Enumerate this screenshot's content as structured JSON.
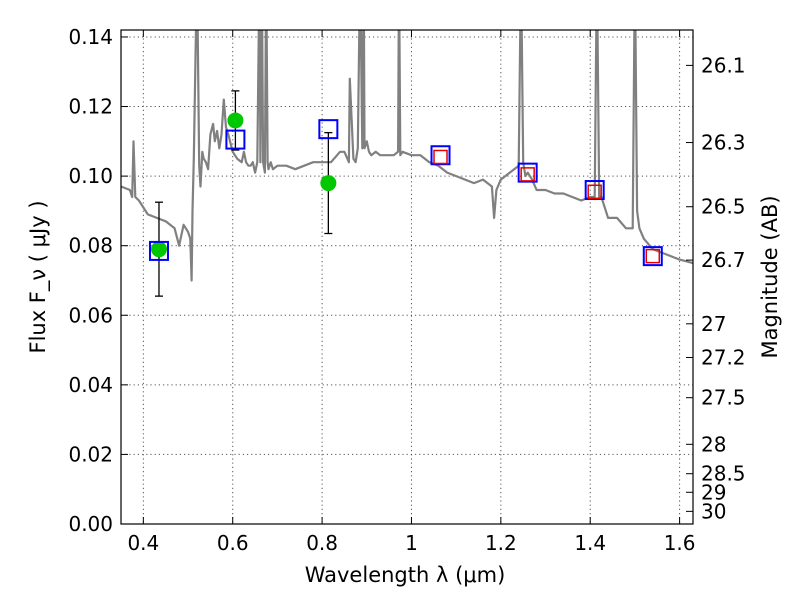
{
  "chart_data": {
    "type": "scatter",
    "xlabel": "Wavelength  λ (μm)",
    "ylabel": "Flux  F_ν  ( μJy )",
    "y2label": "Magnitude (AB)",
    "xlim": [
      0.35,
      1.63
    ],
    "ylim": [
      0.0,
      0.142
    ],
    "grid": true,
    "x_ticks": [
      0.4,
      0.6,
      0.8,
      1.0,
      1.2,
      1.4,
      1.6
    ],
    "x_tick_labels": [
      "0.4",
      "0.6",
      "0.8",
      "1",
      "1.2",
      "1.4",
      "1.6"
    ],
    "y_ticks": [
      0.0,
      0.02,
      0.04,
      0.06,
      0.08,
      0.1,
      0.12,
      0.14
    ],
    "y_tick_labels": [
      "0.00",
      "0.02",
      "0.04",
      "0.06",
      "0.08",
      "0.10",
      "0.12",
      "0.14"
    ],
    "mag_ticks": [
      26.1,
      26.3,
      26.5,
      26.7,
      27,
      27.2,
      27.5,
      28,
      28.5,
      29,
      30
    ],
    "mag_tick_labels": [
      "26.1",
      "26.3",
      "26.5",
      "26.7",
      "27",
      "27.2",
      "27.5",
      "28",
      "28.5",
      "29",
      "30"
    ],
    "series": [
      {
        "name": "model spectrum",
        "kind": "line",
        "color": "#808080",
        "x": [
          0.35,
          0.37,
          0.375,
          0.378,
          0.382,
          0.39,
          0.4,
          0.41,
          0.43,
          0.45,
          0.47,
          0.48,
          0.49,
          0.5,
          0.505,
          0.508,
          0.51,
          0.513,
          0.52,
          0.525,
          0.528,
          0.532,
          0.535,
          0.54,
          0.545,
          0.55,
          0.556,
          0.56,
          0.565,
          0.57,
          0.575,
          0.58,
          0.585,
          0.59,
          0.6,
          0.61,
          0.62,
          0.625,
          0.63,
          0.635,
          0.64,
          0.645,
          0.65,
          0.655,
          0.66,
          0.662,
          0.665,
          0.668,
          0.672,
          0.675,
          0.678,
          0.68,
          0.685,
          0.69,
          0.7,
          0.72,
          0.74,
          0.76,
          0.78,
          0.8,
          0.82,
          0.84,
          0.85,
          0.86,
          0.862,
          0.87,
          0.875,
          0.88,
          0.885,
          0.89,
          0.893,
          0.895,
          0.9,
          0.905,
          0.91,
          0.92,
          0.93,
          0.94,
          0.96,
          0.97,
          0.972,
          0.975,
          0.98,
          1.0,
          1.02,
          1.04,
          1.06,
          1.08,
          1.1,
          1.12,
          1.14,
          1.16,
          1.18,
          1.185,
          1.19,
          1.2,
          1.22,
          1.24,
          1.245,
          1.25,
          1.255,
          1.26,
          1.27,
          1.28,
          1.3,
          1.32,
          1.34,
          1.36,
          1.38,
          1.4,
          1.41,
          1.415,
          1.42,
          1.425,
          1.43,
          1.44,
          1.46,
          1.48,
          1.49,
          1.495,
          1.5,
          1.505,
          1.51,
          1.52,
          1.54,
          1.56,
          1.58,
          1.6,
          1.63
        ],
        "y": [
          0.097,
          0.096,
          0.094,
          0.11,
          0.094,
          0.093,
          0.091,
          0.089,
          0.088,
          0.087,
          0.085,
          0.08,
          0.086,
          0.084,
          0.082,
          0.07,
          0.09,
          0.105,
          0.16,
          0.103,
          0.097,
          0.107,
          0.105,
          0.104,
          0.102,
          0.112,
          0.115,
          0.11,
          0.113,
          0.108,
          0.112,
          0.122,
          0.114,
          0.112,
          0.107,
          0.105,
          0.104,
          0.107,
          0.104,
          0.103,
          0.103,
          0.104,
          0.101,
          0.104,
          0.16,
          0.104,
          0.16,
          0.104,
          0.101,
          0.16,
          0.104,
          0.102,
          0.104,
          0.102,
          0.103,
          0.103,
          0.102,
          0.103,
          0.104,
          0.104,
          0.104,
          0.107,
          0.107,
          0.104,
          0.128,
          0.105,
          0.104,
          0.108,
          0.16,
          0.108,
          0.16,
          0.108,
          0.11,
          0.107,
          0.106,
          0.107,
          0.106,
          0.106,
          0.106,
          0.107,
          0.16,
          0.106,
          0.107,
          0.106,
          0.106,
          0.104,
          0.103,
          0.101,
          0.1,
          0.099,
          0.098,
          0.099,
          0.097,
          0.088,
          0.096,
          0.099,
          0.101,
          0.103,
          0.16,
          0.104,
          0.1,
          0.101,
          0.099,
          0.096,
          0.096,
          0.095,
          0.095,
          0.094,
          0.093,
          0.094,
          0.094,
          0.16,
          0.094,
          0.094,
          0.092,
          0.088,
          0.088,
          0.085,
          0.085,
          0.085,
          0.16,
          0.09,
          0.085,
          0.082,
          0.079,
          0.078,
          0.077,
          0.076,
          0.075
        ]
      },
      {
        "name": "observed photometry",
        "kind": "points",
        "marker": "circle",
        "color": "#00c800",
        "x": [
          0.435,
          0.606,
          0.814
        ],
        "y": [
          0.079,
          0.116,
          0.098
        ],
        "yerr": [
          0.0135,
          0.0085,
          0.0145
        ]
      },
      {
        "name": "model photometry (blue squares)",
        "kind": "points",
        "marker": "square",
        "color": "#0000ff",
        "x": [
          0.435,
          0.606,
          0.814,
          1.065,
          1.26,
          1.41,
          1.54
        ],
        "y": [
          0.0785,
          0.1105,
          0.1135,
          0.106,
          0.101,
          0.096,
          0.077
        ]
      },
      {
        "name": "model photometry (red squares)",
        "kind": "points",
        "marker": "square",
        "color": "#e60000",
        "x": [
          1.065,
          1.26,
          1.41,
          1.54
        ],
        "y": [
          0.1055,
          0.1005,
          0.0955,
          0.077
        ]
      }
    ]
  }
}
